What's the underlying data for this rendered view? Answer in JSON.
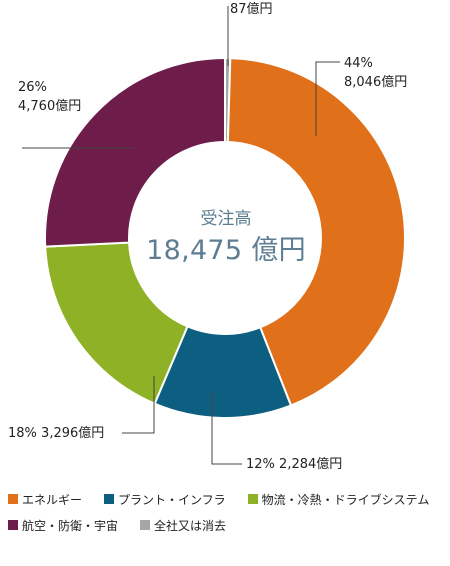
{
  "chart_data": {
    "type": "pie",
    "center_title": "受注高",
    "center_value": "18,475 億円",
    "total": 18475,
    "segments": [
      {
        "name": "エネルギー",
        "value": 8046,
        "percent": "44%",
        "value_label": "8,046億円",
        "color": "#e07019"
      },
      {
        "name": "プラント・インフラ",
        "value": 2284,
        "percent": "12%",
        "value_label": "2,284億円",
        "color": "#0c5f80"
      },
      {
        "name": "物流・冷熱・ドライブシステム",
        "value": 3296,
        "percent": "18%",
        "value_label": "3,296億円",
        "color": "#8fb125"
      },
      {
        "name": "航空・防衛・宇宙",
        "value": 4760,
        "percent": "26%",
        "value_label": "4,760億円",
        "color": "#6e1d4b"
      },
      {
        "name": "全社又は消去",
        "value": 87,
        "percent": "",
        "value_label": "87億円",
        "color": "#a6a6a6"
      }
    ]
  }
}
